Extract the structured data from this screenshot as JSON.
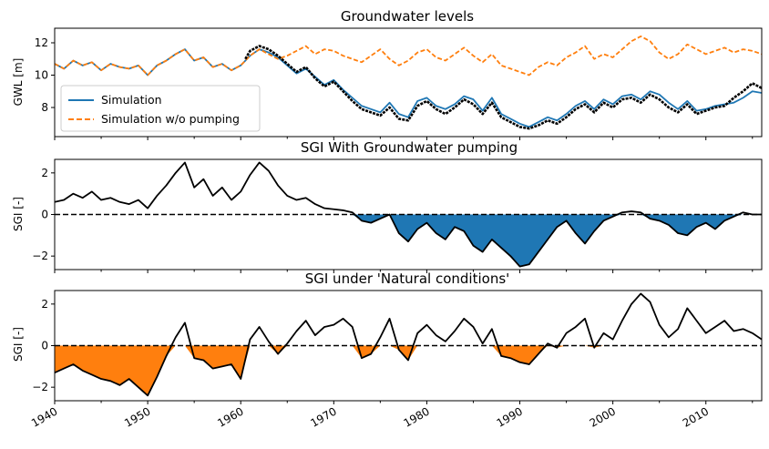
{
  "chart_data": [
    {
      "type": "line",
      "title": "Groundwater levels",
      "xlabel": "",
      "ylabel": "GWL [m]",
      "xlim": [
        1940,
        2016
      ],
      "ylim": [
        6.2,
        12.9
      ],
      "yticks": [
        "8",
        "10",
        "12"
      ],
      "legend_position": "lower-left",
      "series": [
        {
          "name": "Simulation",
          "color": "#1f77b4",
          "style": "solid",
          "x": [
            1940,
            1941,
            1942,
            1943,
            1944,
            1945,
            1946,
            1947,
            1948,
            1949,
            1950,
            1951,
            1952,
            1953,
            1954,
            1955,
            1956,
            1957,
            1958,
            1959,
            1960,
            1961,
            1962,
            1963,
            1964,
            1965,
            1966,
            1967,
            1968,
            1969,
            1970,
            1971,
            1972,
            1973,
            1974,
            1975,
            1976,
            1977,
            1978,
            1979,
            1980,
            1981,
            1982,
            1983,
            1984,
            1985,
            1986,
            1987,
            1988,
            1989,
            1990,
            1991,
            1992,
            1993,
            1994,
            1995,
            1996,
            1997,
            1998,
            1999,
            2000,
            2001,
            2002,
            2003,
            2004,
            2005,
            2006,
            2007,
            2008,
            2009,
            2010,
            2011,
            2012,
            2013,
            2014,
            2015,
            2016
          ],
          "values": [
            10.7,
            10.4,
            10.9,
            10.6,
            10.8,
            10.3,
            10.7,
            10.5,
            10.4,
            10.6,
            10.0,
            10.6,
            10.9,
            11.3,
            11.6,
            10.9,
            11.1,
            10.5,
            10.7,
            10.3,
            10.6,
            11.2,
            11.6,
            11.4,
            11.1,
            10.6,
            10.1,
            10.4,
            9.9,
            9.4,
            9.7,
            9.1,
            8.6,
            8.1,
            7.9,
            7.7,
            8.3,
            7.6,
            7.4,
            8.4,
            8.6,
            8.1,
            7.9,
            8.2,
            8.7,
            8.5,
            7.8,
            8.6,
            7.6,
            7.3,
            7.0,
            6.8,
            7.1,
            7.4,
            7.2,
            7.6,
            8.1,
            8.4,
            7.9,
            8.5,
            8.2,
            8.7,
            8.8,
            8.5,
            9.0,
            8.8,
            8.3,
            7.9,
            8.4,
            7.8,
            7.9,
            8.1,
            8.2,
            8.3,
            8.6,
            9.0,
            8.9
          ]
        },
        {
          "name": "Simulation w/o pumping",
          "color": "#ff7f0e",
          "style": "dashed",
          "x": [
            1940,
            1941,
            1942,
            1943,
            1944,
            1945,
            1946,
            1947,
            1948,
            1949,
            1950,
            1951,
            1952,
            1953,
            1954,
            1955,
            1956,
            1957,
            1958,
            1959,
            1960,
            1961,
            1962,
            1963,
            1964,
            1965,
            1966,
            1967,
            1968,
            1969,
            1970,
            1971,
            1972,
            1973,
            1974,
            1975,
            1976,
            1977,
            1978,
            1979,
            1980,
            1981,
            1982,
            1983,
            1984,
            1985,
            1986,
            1987,
            1988,
            1989,
            1990,
            1991,
            1992,
            1993,
            1994,
            1995,
            1996,
            1997,
            1998,
            1999,
            2000,
            2001,
            2002,
            2003,
            2004,
            2005,
            2006,
            2007,
            2008,
            2009,
            2010,
            2011,
            2012,
            2013,
            2014,
            2015,
            2016
          ],
          "values": [
            10.7,
            10.4,
            10.9,
            10.6,
            10.8,
            10.3,
            10.7,
            10.5,
            10.4,
            10.6,
            10.0,
            10.6,
            10.9,
            11.3,
            11.6,
            10.9,
            11.1,
            10.5,
            10.7,
            10.3,
            10.6,
            11.2,
            11.6,
            11.3,
            11.0,
            11.2,
            11.5,
            11.8,
            11.3,
            11.6,
            11.5,
            11.2,
            11.0,
            10.8,
            11.2,
            11.6,
            11.0,
            10.6,
            10.9,
            11.4,
            11.6,
            11.1,
            10.9,
            11.3,
            11.7,
            11.2,
            10.8,
            11.3,
            10.6,
            10.4,
            10.2,
            10.0,
            10.5,
            10.8,
            10.6,
            11.1,
            11.4,
            11.8,
            11.0,
            11.3,
            11.1,
            11.6,
            12.1,
            12.4,
            12.1,
            11.4,
            11.0,
            11.3,
            11.9,
            11.6,
            11.3,
            11.5,
            11.7,
            11.4,
            11.6,
            11.5,
            11.3
          ]
        },
        {
          "name": "",
          "color": "#000000",
          "style": "observations",
          "x": [
            1960.5,
            1961,
            1962,
            1963,
            1964,
            1965,
            1966,
            1967,
            1968,
            1969,
            1970,
            1971,
            1972,
            1973,
            1974,
            1975,
            1976,
            1977,
            1978,
            1979,
            1980,
            1981,
            1982,
            1983,
            1984,
            1985,
            1986,
            1987,
            1988,
            1989,
            1990,
            1991,
            1992,
            1993,
            1994,
            1995,
            1996,
            1997,
            1998,
            1999,
            2000,
            2001,
            2002,
            2003,
            2004,
            2005,
            2006,
            2007,
            2008,
            2009,
            2010,
            2011,
            2012,
            2013,
            2014,
            2015,
            2016
          ],
          "values": [
            11.0,
            11.5,
            11.8,
            11.6,
            11.2,
            10.7,
            10.2,
            10.5,
            9.8,
            9.3,
            9.6,
            9.0,
            8.4,
            7.9,
            7.7,
            7.5,
            8.0,
            7.3,
            7.2,
            8.1,
            8.4,
            7.9,
            7.6,
            8.0,
            8.5,
            8.2,
            7.6,
            8.3,
            7.4,
            7.1,
            6.8,
            6.7,
            6.9,
            7.2,
            7.0,
            7.4,
            7.9,
            8.2,
            7.7,
            8.3,
            8.0,
            8.5,
            8.6,
            8.3,
            8.8,
            8.5,
            8.0,
            7.7,
            8.2,
            7.6,
            7.8,
            8.0,
            8.1,
            8.6,
            9.0,
            9.5,
            9.2
          ]
        }
      ]
    },
    {
      "type": "area",
      "title": "SGI With Groundwater pumping",
      "xlabel": "",
      "ylabel": "SGI [-]",
      "xlim": [
        1940,
        2016
      ],
      "ylim": [
        -2.65,
        2.65
      ],
      "yticks": [
        "−2",
        "0",
        "2"
      ],
      "fill_below_zero_color": "#1f77b4",
      "zero_line": "dashed",
      "series": [
        {
          "name": "",
          "color": "#000000",
          "x": [
            1940,
            1941,
            1942,
            1943,
            1944,
            1945,
            1946,
            1947,
            1948,
            1949,
            1950,
            1951,
            1952,
            1953,
            1954,
            1955,
            1956,
            1957,
            1958,
            1959,
            1960,
            1961,
            1962,
            1963,
            1964,
            1965,
            1966,
            1967,
            1968,
            1969,
            1970,
            1971,
            1972,
            1973,
            1974,
            1975,
            1976,
            1977,
            1978,
            1979,
            1980,
            1981,
            1982,
            1983,
            1984,
            1985,
            1986,
            1987,
            1988,
            1989,
            1990,
            1991,
            1992,
            1993,
            1994,
            1995,
            1996,
            1997,
            1998,
            1999,
            2000,
            2001,
            2002,
            2003,
            2004,
            2005,
            2006,
            2007,
            2008,
            2009,
            2010,
            2011,
            2012,
            2013,
            2014,
            2015,
            2016
          ],
          "values": [
            0.6,
            0.7,
            1.0,
            0.8,
            1.1,
            0.7,
            0.8,
            0.6,
            0.5,
            0.7,
            0.3,
            0.9,
            1.4,
            2.0,
            2.5,
            1.3,
            1.7,
            0.9,
            1.3,
            0.7,
            1.1,
            1.9,
            2.5,
            2.1,
            1.4,
            0.9,
            0.7,
            0.8,
            0.5,
            0.3,
            0.25,
            0.2,
            0.1,
            -0.3,
            -0.4,
            -0.2,
            0.0,
            -0.9,
            -1.3,
            -0.7,
            -0.4,
            -0.9,
            -1.2,
            -0.6,
            -0.8,
            -1.5,
            -1.8,
            -1.2,
            -1.6,
            -2.0,
            -2.5,
            -2.4,
            -1.8,
            -1.2,
            -0.6,
            -0.3,
            -0.9,
            -1.4,
            -0.8,
            -0.3,
            -0.1,
            0.1,
            0.15,
            0.1,
            -0.2,
            -0.3,
            -0.5,
            -0.9,
            -1.0,
            -0.6,
            -0.4,
            -0.7,
            -0.3,
            -0.1,
            0.1,
            0.0,
            0.0
          ]
        }
      ]
    },
    {
      "type": "area",
      "title": "SGI under 'Natural conditions'",
      "xlabel": "",
      "ylabel": "SGI [-]",
      "xlim": [
        1940,
        2016
      ],
      "ylim": [
        -2.65,
        2.65
      ],
      "yticks": [
        "−2",
        "0",
        "2"
      ],
      "xticks": [
        "1940",
        "1950",
        "1960",
        "1970",
        "1980",
        "1990",
        "2000",
        "2010"
      ],
      "fill_below_zero_color": "#ff7f0e",
      "zero_line": "dashed",
      "series": [
        {
          "name": "",
          "color": "#000000",
          "x": [
            1940,
            1941,
            1942,
            1943,
            1944,
            1945,
            1946,
            1947,
            1948,
            1949,
            1950,
            1951,
            1952,
            1953,
            1954,
            1955,
            1956,
            1957,
            1958,
            1959,
            1960,
            1961,
            1962,
            1963,
            1964,
            1965,
            1966,
            1967,
            1968,
            1969,
            1970,
            1971,
            1972,
            1973,
            1974,
            1975,
            1976,
            1977,
            1978,
            1979,
            1980,
            1981,
            1982,
            1983,
            1984,
            1985,
            1986,
            1987,
            1988,
            1989,
            1990,
            1991,
            1992,
            1993,
            1994,
            1995,
            1996,
            1997,
            1998,
            1999,
            2000,
            2001,
            2002,
            2003,
            2004,
            2005,
            2006,
            2007,
            2008,
            2009,
            2010,
            2011,
            2012,
            2013,
            2014,
            2015,
            2016
          ],
          "values": [
            -1.3,
            -1.1,
            -0.9,
            -1.2,
            -1.4,
            -1.6,
            -1.7,
            -1.9,
            -1.6,
            -2.0,
            -2.4,
            -1.5,
            -0.5,
            0.4,
            1.1,
            -0.6,
            -0.7,
            -1.1,
            -1.0,
            -0.9,
            -1.6,
            0.3,
            0.9,
            0.2,
            -0.4,
            0.1,
            0.7,
            1.2,
            0.5,
            0.9,
            1.0,
            1.3,
            0.9,
            -0.6,
            -0.4,
            0.4,
            1.3,
            -0.2,
            -0.7,
            0.6,
            1.0,
            0.5,
            0.2,
            0.7,
            1.3,
            0.9,
            0.1,
            0.8,
            -0.5,
            -0.6,
            -0.8,
            -0.9,
            -0.4,
            0.1,
            -0.1,
            0.6,
            0.9,
            1.3,
            -0.1,
            0.6,
            0.3,
            1.2,
            2.0,
            2.5,
            2.1,
            1.0,
            0.4,
            0.8,
            1.8,
            1.2,
            0.6,
            0.9,
            1.2,
            0.7,
            0.8,
            0.6,
            0.3
          ]
        }
      ]
    }
  ]
}
